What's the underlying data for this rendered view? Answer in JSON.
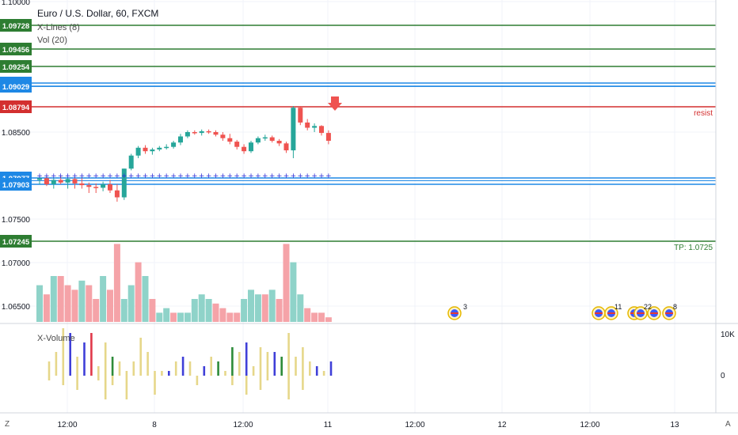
{
  "header": {
    "title": "Euro / U.S. Dollar, 60, FXCM",
    "indicator_1": "X-Lines (8)",
    "indicator_2": "Vol (20)",
    "lower_pane_title": "X-Volume"
  },
  "bottom_bar": {
    "left_button": "Z",
    "right_button": "A"
  },
  "colors": {
    "up": "#26a69a",
    "down": "#ef5350",
    "resist": "#d32f2f",
    "support_blue": "#1e88e5",
    "level_green": "#2e7d32",
    "vol_up": "#8fd3c9",
    "vol_down": "#f5a3a8",
    "xvol_yellow": "#e6d78a",
    "xvol_blue": "#3f3fd8",
    "xvol_green": "#2e8b3a",
    "xvol_red": "#e0394a"
  },
  "chart_data": {
    "type": "candlestick",
    "title": "Euro / U.S. Dollar, 60, FXCM",
    "x_ticks": [
      "12:00",
      "8",
      "12:00",
      "11",
      "12:00",
      "12",
      "12:00",
      "13"
    ],
    "y_ticks": [
      "1.10000",
      "1.08500",
      "1.07500",
      "1.07000",
      "1.06500"
    ],
    "horizontal_levels": [
      {
        "price": 1.09728,
        "label": "1.09728",
        "color": "#2e7d32"
      },
      {
        "price": 1.09456,
        "label": "1.09456",
        "color": "#2e7d32"
      },
      {
        "price": 1.09254,
        "label": "1.09254",
        "color": "#2e7d32"
      },
      {
        "price": 1.0906,
        "label": "1.09060",
        "color": "#1e88e5"
      },
      {
        "price": 1.09029,
        "label": "1.09029",
        "color": "#1e88e5"
      },
      {
        "price": 1.08794,
        "label": "1.08794",
        "color": "#d32f2f",
        "note": "resist"
      },
      {
        "price": 1.07977,
        "label": "1.07977",
        "color": "#1e88e5"
      },
      {
        "price": 1.07903,
        "label": "1.07903",
        "color": "#1e88e5"
      },
      {
        "price": 1.07245,
        "label": "1.07245",
        "color": "#2e7d32",
        "note": "TP: 1.0725"
      }
    ],
    "candles": [
      [
        1.0795,
        1.08,
        1.079,
        1.0797
      ],
      [
        1.0797,
        1.08,
        1.0788,
        1.079
      ],
      [
        1.079,
        1.0797,
        1.0785,
        1.0795
      ],
      [
        1.0795,
        1.08,
        1.079,
        1.0792
      ],
      [
        1.0792,
        1.0798,
        1.0785,
        1.0796
      ],
      [
        1.0796,
        1.0798,
        1.0785,
        1.0791
      ],
      [
        1.0791,
        1.0797,
        1.0785,
        1.0789
      ],
      [
        1.0789,
        1.0792,
        1.078,
        1.0787
      ],
      [
        1.0787,
        1.0791,
        1.078,
        1.0786
      ],
      [
        1.0786,
        1.0793,
        1.0782,
        1.079
      ],
      [
        1.079,
        1.0795,
        1.078,
        1.0783
      ],
      [
        1.0783,
        1.079,
        1.077,
        1.0775
      ],
      [
        1.0775,
        1.0808,
        1.0772,
        1.0808
      ],
      [
        1.0808,
        1.0825,
        1.0806,
        1.0823
      ],
      [
        1.0823,
        1.0834,
        1.082,
        1.0832
      ],
      [
        1.0832,
        1.0835,
        1.0825,
        1.0828
      ],
      [
        1.0828,
        1.0832,
        1.0824,
        1.083
      ],
      [
        1.083,
        1.0834,
        1.0828,
        1.0832
      ],
      [
        1.0832,
        1.0836,
        1.083,
        1.0833
      ],
      [
        1.0833,
        1.084,
        1.0831,
        1.0838
      ],
      [
        1.0838,
        1.0848,
        1.0835,
        1.0845
      ],
      [
        1.0845,
        1.0852,
        1.0843,
        1.085
      ],
      [
        1.085,
        1.0852,
        1.0847,
        1.0849
      ],
      [
        1.0849,
        1.0853,
        1.0846,
        1.0851
      ],
      [
        1.0851,
        1.0853,
        1.0848,
        1.085
      ],
      [
        1.085,
        1.0852,
        1.0845,
        1.0847
      ],
      [
        1.0847,
        1.085,
        1.084,
        1.0843
      ],
      [
        1.0843,
        1.0848,
        1.0836,
        1.0839
      ],
      [
        1.0839,
        1.0841,
        1.083,
        1.0833
      ],
      [
        1.0833,
        1.0836,
        1.0825,
        1.0828
      ],
      [
        1.0828,
        1.084,
        1.0826,
        1.0838
      ],
      [
        1.0838,
        1.0845,
        1.0836,
        1.0843
      ],
      [
        1.0843,
        1.0847,
        1.084,
        1.0844
      ],
      [
        1.0844,
        1.0846,
        1.0838,
        1.084
      ],
      [
        1.084,
        1.0842,
        1.0834,
        1.0837
      ],
      [
        1.0837,
        1.0839,
        1.0826,
        1.0829
      ],
      [
        1.0829,
        1.088,
        1.082,
        1.0878
      ],
      [
        1.0878,
        1.088,
        1.0858,
        1.0861
      ],
      [
        1.0861,
        1.0865,
        1.0852,
        1.0855
      ],
      [
        1.0855,
        1.086,
        1.085,
        1.0857
      ],
      [
        1.0857,
        1.0858,
        1.0846,
        1.0849
      ],
      [
        1.0849,
        1.0852,
        1.0836,
        1.084
      ]
    ],
    "volume": [
      [
        8,
        0
      ],
      [
        6,
        1
      ],
      [
        10,
        0
      ],
      [
        10,
        1
      ],
      [
        8,
        1
      ],
      [
        7,
        1
      ],
      [
        9,
        0
      ],
      [
        8,
        1
      ],
      [
        5,
        1
      ],
      [
        10,
        0
      ],
      [
        7,
        1
      ],
      [
        17,
        1
      ],
      [
        5,
        0
      ],
      [
        8,
        0
      ],
      [
        13,
        1
      ],
      [
        10,
        0
      ],
      [
        5,
        1
      ],
      [
        2,
        0
      ],
      [
        3,
        0
      ],
      [
        2,
        1
      ],
      [
        2,
        0
      ],
      [
        2,
        0
      ],
      [
        5,
        0
      ],
      [
        6,
        0
      ],
      [
        5,
        0
      ],
      [
        4,
        1
      ],
      [
        3,
        1
      ],
      [
        2,
        1
      ],
      [
        2,
        1
      ],
      [
        5,
        0
      ],
      [
        7,
        0
      ],
      [
        6,
        0
      ],
      [
        6,
        1
      ],
      [
        7,
        0
      ],
      [
        5,
        1
      ],
      [
        17,
        1
      ],
      [
        13,
        0
      ],
      [
        6,
        0
      ],
      [
        3,
        1
      ],
      [
        2,
        1
      ],
      [
        2,
        1
      ],
      [
        1,
        1
      ]
    ],
    "x_volume": [
      [
        0,
        0,
        "yellow"
      ],
      [
        3,
        -1,
        "yellow"
      ],
      [
        5,
        0,
        "yellow"
      ],
      [
        10,
        -2,
        "yellow"
      ],
      [
        9,
        0,
        "blue"
      ],
      [
        4,
        -3,
        "yellow"
      ],
      [
        7,
        0,
        "blue"
      ],
      [
        9,
        0,
        "red"
      ],
      [
        2,
        -1,
        "yellow"
      ],
      [
        7,
        -5,
        "yellow"
      ],
      [
        4,
        -2,
        "green"
      ],
      [
        3,
        0,
        "yellow"
      ],
      [
        1,
        -5,
        "yellow"
      ],
      [
        3,
        0,
        "yellow"
      ],
      [
        8,
        0,
        "yellow"
      ],
      [
        5,
        0,
        "yellow"
      ],
      [
        1,
        -4,
        "yellow"
      ],
      [
        1,
        0,
        "yellow"
      ],
      [
        1,
        0,
        "blue"
      ],
      [
        3,
        0,
        "yellow"
      ],
      [
        4,
        0,
        "blue"
      ],
      [
        3,
        0,
        "yellow"
      ],
      [
        0,
        -2,
        "yellow"
      ],
      [
        2,
        0,
        "blue"
      ],
      [
        4,
        0,
        "yellow"
      ],
      [
        3,
        0,
        "green"
      ],
      [
        1,
        0,
        "yellow"
      ],
      [
        6,
        -2,
        "green"
      ],
      [
        5,
        0,
        "yellow"
      ],
      [
        7,
        -4,
        "blue"
      ],
      [
        2,
        0,
        "yellow"
      ],
      [
        6,
        -3,
        "yellow"
      ],
      [
        5,
        -1,
        "yellow"
      ],
      [
        5,
        0,
        "blue"
      ],
      [
        4,
        0,
        "green"
      ],
      [
        9,
        -5,
        "yellow"
      ],
      [
        4,
        0,
        "yellow"
      ],
      [
        6,
        -3,
        "yellow"
      ],
      [
        3,
        0,
        "yellow"
      ],
      [
        2,
        0,
        "blue"
      ],
      [
        1,
        0,
        "yellow"
      ],
      [
        3,
        0,
        "blue"
      ]
    ],
    "x_volume_ticks": [
      "10K",
      "0"
    ],
    "events": [
      {
        "x": "12:00",
        "count": "3"
      },
      {
        "x": "12",
        "count": "11"
      },
      {
        "x": "12",
        "count": "22"
      },
      {
        "x": "12:00",
        "count": "8"
      }
    ],
    "plus_markers_price": 1.08,
    "resist_label": "resist",
    "tp_label": "TP: 1.0725"
  }
}
